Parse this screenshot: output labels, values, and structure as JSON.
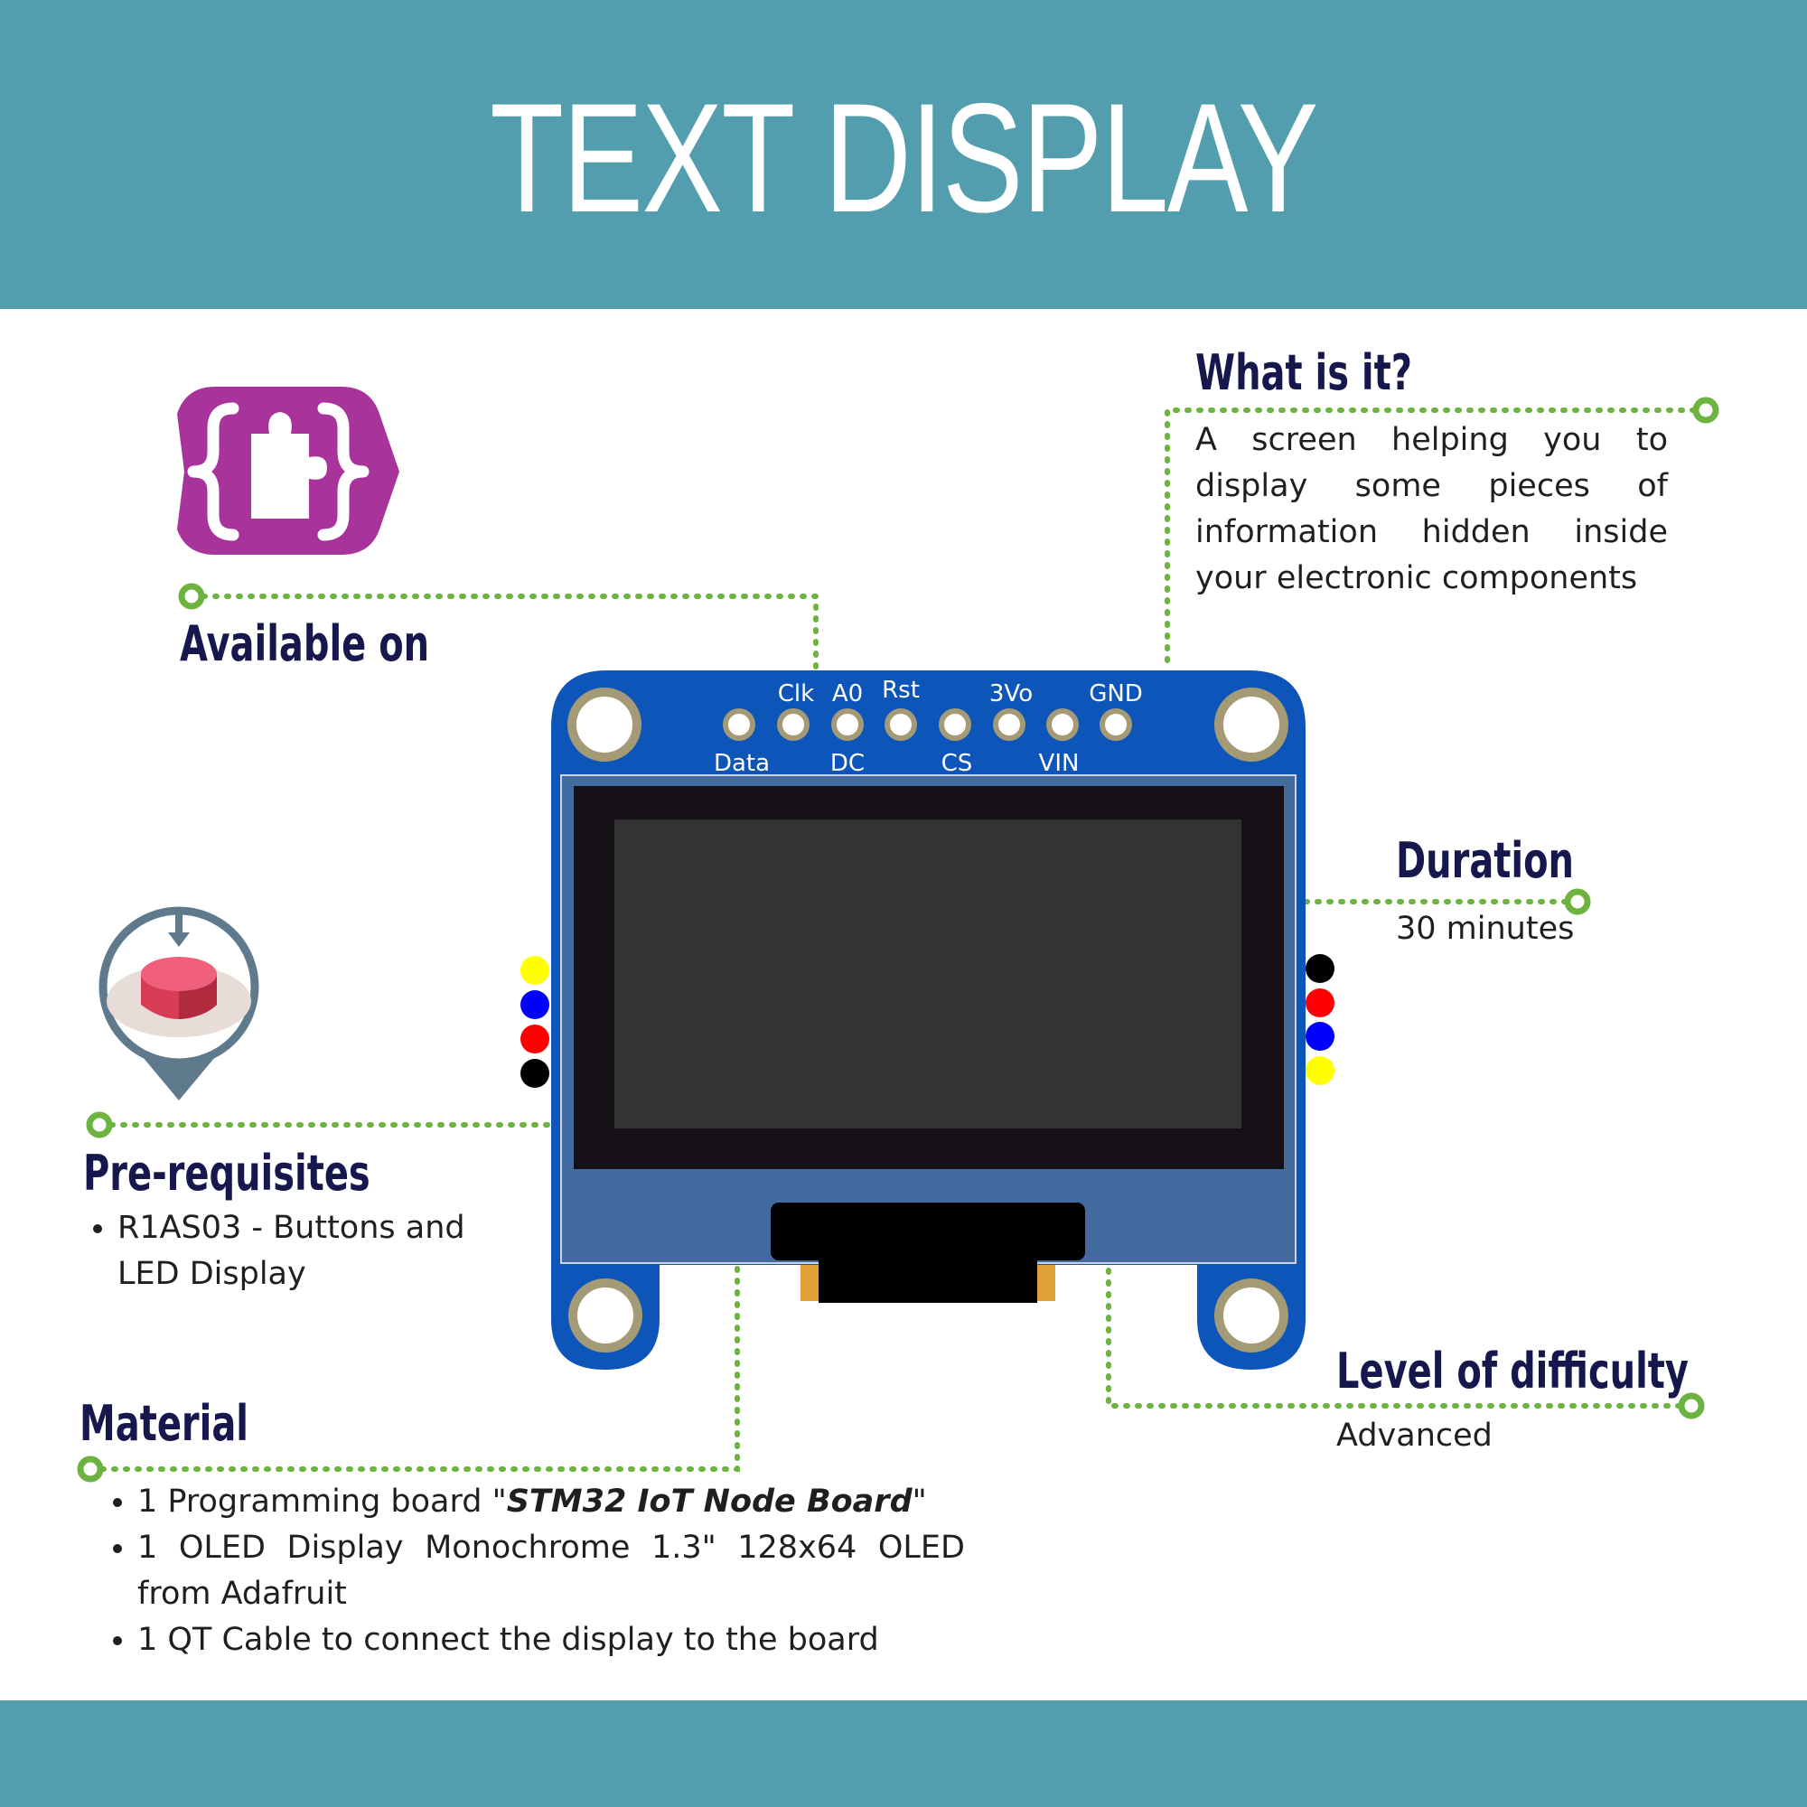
{
  "header": {
    "title": "TEXT DISPLAY"
  },
  "what_is_it": {
    "heading": "What is it?",
    "text": "A screen helping you to display some pieces of information hidden inside your electronic components"
  },
  "available_on": {
    "heading": "Available on",
    "icon": "puzzle-braces-icon"
  },
  "duration": {
    "heading": "Duration",
    "value": "30 minutes"
  },
  "prerequisites": {
    "heading": "Pre-requisites",
    "icon": "push-button-pin-icon",
    "items": [
      "R1AS03 - Buttons and LED Display"
    ]
  },
  "level": {
    "heading": "Level of difficulty",
    "value": "Advanced"
  },
  "material": {
    "heading": "Material",
    "item1_prefix": "1 Programming board \"",
    "item1_bold": "STM32 IoT Node Board",
    "item1_suffix": "\"",
    "item2": "1 OLED Display Monochrome 1.3\" 128x64 OLED from Adafruit",
    "item3": "1 QT Cable to connect the display to the board"
  },
  "board": {
    "top_pin_labels": [
      "Clk",
      "A0",
      "Rst",
      "3Vo",
      "GND"
    ],
    "bottom_pin_labels": [
      "Data",
      "DC",
      "CS",
      "VIN"
    ],
    "left_wire_colors": [
      "#ffff00",
      "#0000ff",
      "#ff0000",
      "#000000"
    ],
    "right_wire_colors": [
      "#000000",
      "#ff0000",
      "#0000ff",
      "#ffff00"
    ]
  },
  "colors": {
    "band": "#529eae",
    "heading": "#15174d",
    "connector": "#6db33f",
    "board": "#0d55b8",
    "icon_purple": "#a8339a"
  }
}
